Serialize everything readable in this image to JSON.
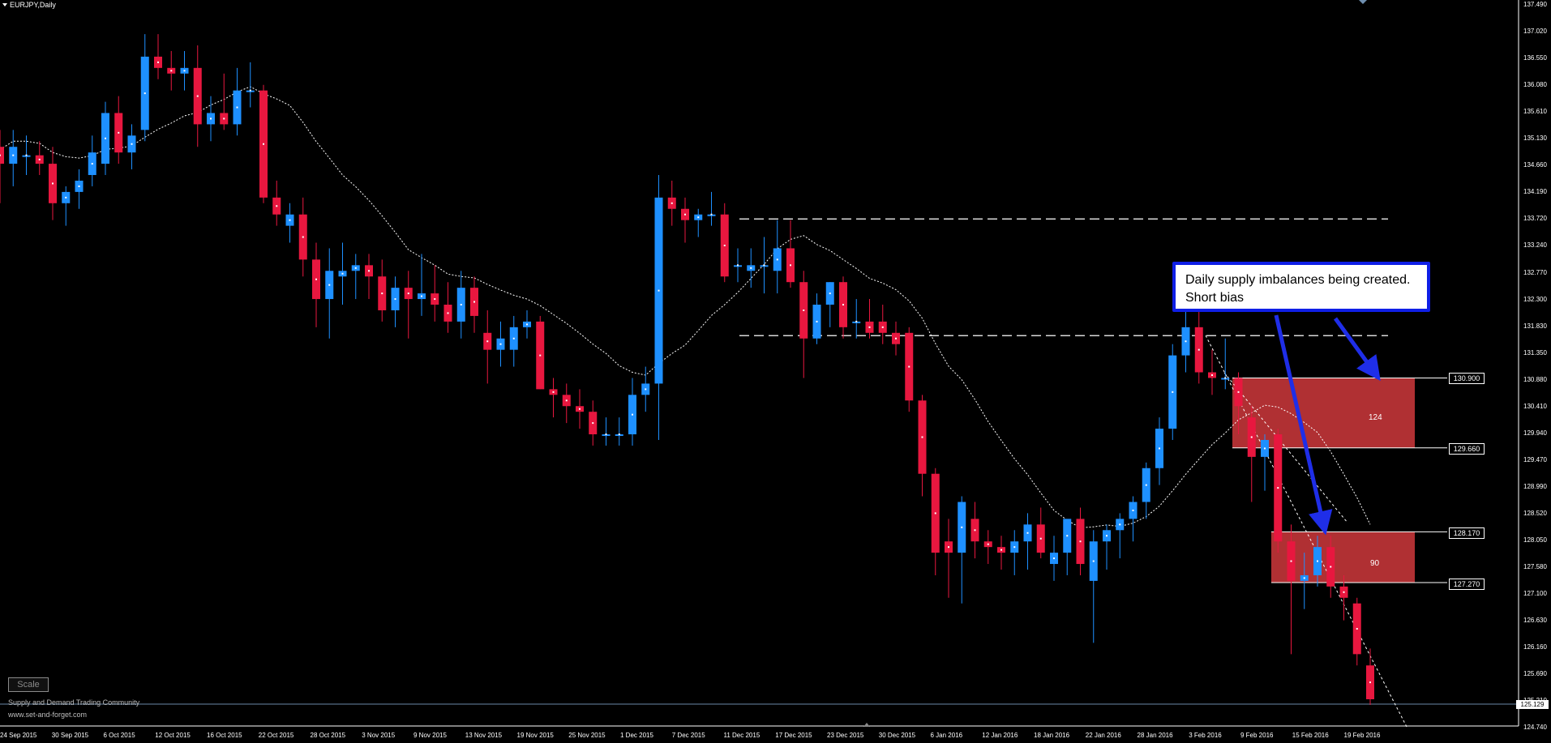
{
  "header": {
    "symbol": "EURJPY,Daily"
  },
  "price_axis": [
    "137.490",
    "137.020",
    "136.550",
    "136.080",
    "135.610",
    "135.130",
    "134.660",
    "134.190",
    "133.720",
    "133.240",
    "132.770",
    "132.300",
    "131.830",
    "131.350",
    "130.880",
    "130.410",
    "129.940",
    "129.470",
    "128.990",
    "128.520",
    "128.050",
    "127.580",
    "127.100",
    "126.630",
    "126.160",
    "125.690",
    "125.210",
    "124.740"
  ],
  "date_axis": [
    "24 Sep 2015",
    "30 Sep 2015",
    "6 Oct 2015",
    "12 Oct 2015",
    "16 Oct 2015",
    "22 Oct 2015",
    "28 Oct 2015",
    "3 Nov 2015",
    "9 Nov 2015",
    "13 Nov 2015",
    "19 Nov 2015",
    "25 Nov 2015",
    "1 Dec 2015",
    "7 Dec 2015",
    "11 Dec 2015",
    "17 Dec 2015",
    "23 Dec 2015",
    "30 Dec 2015",
    "6 Jan 2016",
    "12 Jan 2016",
    "18 Jan 2016",
    "22 Jan 2016",
    "28 Jan 2016",
    "3 Feb 2016",
    "9 Feb 2016",
    "15 Feb 2016",
    "19 Feb 2016"
  ],
  "annotation": {
    "text": "Daily supply imbalances being created. Short bias"
  },
  "zones": [
    {
      "label": "124",
      "top_price": "130.900",
      "bottom_price": "129.660",
      "top": 130.9,
      "bottom": 129.66
    },
    {
      "label": "90",
      "top_price": "128.170",
      "bottom_price": "127.270",
      "top": 128.17,
      "bottom": 127.27
    }
  ],
  "current_price": "125.129",
  "scale_button": "Scale",
  "footer": {
    "line1": "Supply and Demand Trading Community",
    "line2": "www.set-and-forget.com"
  },
  "colors": {
    "bull": "#1e90ff",
    "bear": "#e8173f",
    "zone": "#b03033",
    "callout_border": "#0f1fe6",
    "arrow": "#1f2ee8"
  },
  "chart_data": {
    "type": "candlestick",
    "ylim": [
      124.74,
      137.49
    ],
    "horizontal_levels": [
      133.72,
      131.65
    ],
    "candles": [
      {
        "o": 135.0,
        "h": 135.3,
        "l": 134.0,
        "c": 134.7
      },
      {
        "o": 134.7,
        "h": 135.3,
        "l": 134.3,
        "c": 135.0
      },
      {
        "o": 134.85,
        "h": 135.2,
        "l": 134.5,
        "c": 134.85
      },
      {
        "o": 134.85,
        "h": 135.1,
        "l": 134.5,
        "c": 134.7
      },
      {
        "o": 134.7,
        "h": 135.0,
        "l": 133.7,
        "c": 134.0
      },
      {
        "o": 134.0,
        "h": 134.3,
        "l": 133.6,
        "c": 134.2
      },
      {
        "o": 134.2,
        "h": 134.6,
        "l": 133.9,
        "c": 134.4
      },
      {
        "o": 134.5,
        "h": 135.2,
        "l": 134.3,
        "c": 134.9
      },
      {
        "o": 134.7,
        "h": 135.8,
        "l": 134.5,
        "c": 135.6
      },
      {
        "o": 135.6,
        "h": 135.9,
        "l": 134.7,
        "c": 134.9
      },
      {
        "o": 134.9,
        "h": 135.4,
        "l": 134.6,
        "c": 135.2
      },
      {
        "o": 135.3,
        "h": 137.0,
        "l": 135.1,
        "c": 136.6
      },
      {
        "o": 136.6,
        "h": 137.0,
        "l": 136.2,
        "c": 136.4
      },
      {
        "o": 136.4,
        "h": 136.7,
        "l": 136.0,
        "c": 136.3
      },
      {
        "o": 136.3,
        "h": 136.7,
        "l": 136.0,
        "c": 136.4
      },
      {
        "o": 136.4,
        "h": 136.8,
        "l": 135.0,
        "c": 135.4
      },
      {
        "o": 135.4,
        "h": 135.9,
        "l": 135.1,
        "c": 135.6
      },
      {
        "o": 135.6,
        "h": 136.3,
        "l": 135.3,
        "c": 135.4
      },
      {
        "o": 135.4,
        "h": 136.4,
        "l": 135.2,
        "c": 136.0
      },
      {
        "o": 136.0,
        "h": 136.5,
        "l": 135.7,
        "c": 136.0
      },
      {
        "o": 136.0,
        "h": 136.1,
        "l": 134.0,
        "c": 134.1
      },
      {
        "o": 134.1,
        "h": 134.4,
        "l": 133.6,
        "c": 133.8
      },
      {
        "o": 133.6,
        "h": 134.0,
        "l": 133.3,
        "c": 133.8
      },
      {
        "o": 133.8,
        "h": 134.1,
        "l": 132.7,
        "c": 133.0
      },
      {
        "o": 133.0,
        "h": 133.3,
        "l": 131.8,
        "c": 132.3
      },
      {
        "o": 132.3,
        "h": 133.2,
        "l": 131.6,
        "c": 132.8
      },
      {
        "o": 132.7,
        "h": 133.3,
        "l": 132.2,
        "c": 132.8
      },
      {
        "o": 132.8,
        "h": 133.1,
        "l": 132.3,
        "c": 132.9
      },
      {
        "o": 132.9,
        "h": 133.1,
        "l": 132.3,
        "c": 132.7
      },
      {
        "o": 132.7,
        "h": 133.0,
        "l": 131.9,
        "c": 132.1
      },
      {
        "o": 132.1,
        "h": 132.7,
        "l": 131.8,
        "c": 132.5
      },
      {
        "o": 132.5,
        "h": 132.8,
        "l": 131.6,
        "c": 132.3
      },
      {
        "o": 132.3,
        "h": 133.1,
        "l": 132.0,
        "c": 132.4
      },
      {
        "o": 132.4,
        "h": 132.9,
        "l": 131.9,
        "c": 132.2
      },
      {
        "o": 132.2,
        "h": 132.6,
        "l": 131.7,
        "c": 131.9
      },
      {
        "o": 131.9,
        "h": 132.8,
        "l": 131.6,
        "c": 132.5
      },
      {
        "o": 132.5,
        "h": 132.7,
        "l": 131.7,
        "c": 132.0
      },
      {
        "o": 131.7,
        "h": 132.1,
        "l": 130.8,
        "c": 131.4
      },
      {
        "o": 131.4,
        "h": 131.9,
        "l": 131.1,
        "c": 131.6
      },
      {
        "o": 131.4,
        "h": 132.0,
        "l": 131.1,
        "c": 131.8
      },
      {
        "o": 131.8,
        "h": 132.1,
        "l": 131.6,
        "c": 131.9
      },
      {
        "o": 131.9,
        "h": 132.0,
        "l": 130.7,
        "c": 130.7
      },
      {
        "o": 130.7,
        "h": 130.9,
        "l": 130.2,
        "c": 130.6
      },
      {
        "o": 130.6,
        "h": 130.8,
        "l": 130.1,
        "c": 130.4
      },
      {
        "o": 130.4,
        "h": 130.7,
        "l": 130.0,
        "c": 130.3
      },
      {
        "o": 130.3,
        "h": 130.5,
        "l": 129.7,
        "c": 129.9
      },
      {
        "o": 129.9,
        "h": 130.2,
        "l": 129.7,
        "c": 129.9
      },
      {
        "o": 129.9,
        "h": 130.2,
        "l": 129.7,
        "c": 129.9
      },
      {
        "o": 129.9,
        "h": 130.9,
        "l": 129.7,
        "c": 130.6
      },
      {
        "o": 130.6,
        "h": 131.1,
        "l": 130.3,
        "c": 130.8
      },
      {
        "o": 130.8,
        "h": 134.5,
        "l": 129.8,
        "c": 134.1
      },
      {
        "o": 134.1,
        "h": 134.4,
        "l": 133.6,
        "c": 133.9
      },
      {
        "o": 133.9,
        "h": 134.1,
        "l": 133.3,
        "c": 133.7
      },
      {
        "o": 133.7,
        "h": 133.9,
        "l": 133.4,
        "c": 133.8
      },
      {
        "o": 133.8,
        "h": 134.2,
        "l": 133.6,
        "c": 133.8
      },
      {
        "o": 133.8,
        "h": 134.0,
        "l": 132.6,
        "c": 132.7
      },
      {
        "o": 132.9,
        "h": 133.2,
        "l": 132.6,
        "c": 132.9
      },
      {
        "o": 132.8,
        "h": 133.2,
        "l": 132.5,
        "c": 132.9
      },
      {
        "o": 132.9,
        "h": 133.4,
        "l": 132.4,
        "c": 132.9
      },
      {
        "o": 132.8,
        "h": 133.7,
        "l": 132.4,
        "c": 133.2
      },
      {
        "o": 133.2,
        "h": 133.7,
        "l": 132.5,
        "c": 132.6
      },
      {
        "o": 132.6,
        "h": 132.8,
        "l": 130.9,
        "c": 131.6
      },
      {
        "o": 131.6,
        "h": 132.4,
        "l": 131.5,
        "c": 132.2
      },
      {
        "o": 132.2,
        "h": 132.6,
        "l": 131.8,
        "c": 132.6
      },
      {
        "o": 132.6,
        "h": 132.7,
        "l": 131.6,
        "c": 131.8
      },
      {
        "o": 131.9,
        "h": 132.3,
        "l": 131.6,
        "c": 131.9
      },
      {
        "o": 131.9,
        "h": 132.3,
        "l": 131.6,
        "c": 131.7
      },
      {
        "o": 131.9,
        "h": 132.2,
        "l": 131.5,
        "c": 131.7
      },
      {
        "o": 131.7,
        "h": 131.9,
        "l": 131.3,
        "c": 131.5
      },
      {
        "o": 131.7,
        "h": 131.8,
        "l": 130.3,
        "c": 130.5
      },
      {
        "o": 130.5,
        "h": 130.6,
        "l": 128.8,
        "c": 129.2
      },
      {
        "o": 129.2,
        "h": 129.3,
        "l": 127.4,
        "c": 127.8
      },
      {
        "o": 128.0,
        "h": 128.4,
        "l": 127.0,
        "c": 127.8
      },
      {
        "o": 127.8,
        "h": 128.8,
        "l": 126.9,
        "c": 128.7
      },
      {
        "o": 128.4,
        "h": 128.7,
        "l": 127.7,
        "c": 128.0
      },
      {
        "o": 128.0,
        "h": 128.2,
        "l": 127.6,
        "c": 127.9
      },
      {
        "o": 127.9,
        "h": 128.1,
        "l": 127.5,
        "c": 127.8
      },
      {
        "o": 127.8,
        "h": 128.2,
        "l": 127.4,
        "c": 128.0
      },
      {
        "o": 128.0,
        "h": 128.5,
        "l": 127.5,
        "c": 128.3
      },
      {
        "o": 128.3,
        "h": 128.6,
        "l": 127.7,
        "c": 127.8
      },
      {
        "o": 127.6,
        "h": 128.1,
        "l": 127.3,
        "c": 127.8
      },
      {
        "o": 127.8,
        "h": 128.3,
        "l": 127.4,
        "c": 128.4
      },
      {
        "o": 128.4,
        "h": 128.6,
        "l": 127.4,
        "c": 127.6
      },
      {
        "o": 127.3,
        "h": 128.2,
        "l": 126.2,
        "c": 128.0
      },
      {
        "o": 128.0,
        "h": 128.3,
        "l": 127.5,
        "c": 128.2
      },
      {
        "o": 128.2,
        "h": 128.5,
        "l": 127.7,
        "c": 128.4
      },
      {
        "o": 128.4,
        "h": 128.8,
        "l": 128.0,
        "c": 128.7
      },
      {
        "o": 128.7,
        "h": 129.4,
        "l": 128.4,
        "c": 129.3
      },
      {
        "o": 129.3,
        "h": 130.2,
        "l": 129.0,
        "c": 130.0
      },
      {
        "o": 130.0,
        "h": 131.5,
        "l": 129.8,
        "c": 131.3
      },
      {
        "o": 131.3,
        "h": 132.3,
        "l": 131.0,
        "c": 131.8
      },
      {
        "o": 131.8,
        "h": 132.1,
        "l": 130.8,
        "c": 131.0
      },
      {
        "o": 131.0,
        "h": 131.4,
        "l": 130.6,
        "c": 130.9
      },
      {
        "o": 130.9,
        "h": 131.6,
        "l": 130.7,
        "c": 130.9
      },
      {
        "o": 130.9,
        "h": 131.0,
        "l": 129.9,
        "c": 130.4
      },
      {
        "o": 130.2,
        "h": 130.4,
        "l": 128.7,
        "c": 129.5
      },
      {
        "o": 129.5,
        "h": 129.9,
        "l": 128.9,
        "c": 129.8
      },
      {
        "o": 129.9,
        "h": 130.0,
        "l": 127.8,
        "c": 128.0
      },
      {
        "o": 128.0,
        "h": 128.3,
        "l": 126.0,
        "c": 127.3
      },
      {
        "o": 127.3,
        "h": 127.8,
        "l": 126.8,
        "c": 127.4
      },
      {
        "o": 127.4,
        "h": 128.1,
        "l": 127.2,
        "c": 127.9
      },
      {
        "o": 127.9,
        "h": 128.1,
        "l": 127.0,
        "c": 127.2
      },
      {
        "o": 127.2,
        "h": 127.4,
        "l": 126.6,
        "c": 127.0
      },
      {
        "o": 126.9,
        "h": 127.0,
        "l": 125.8,
        "c": 126.0
      },
      {
        "o": 125.8,
        "h": 126.1,
        "l": 125.1,
        "c": 125.2
      }
    ]
  }
}
